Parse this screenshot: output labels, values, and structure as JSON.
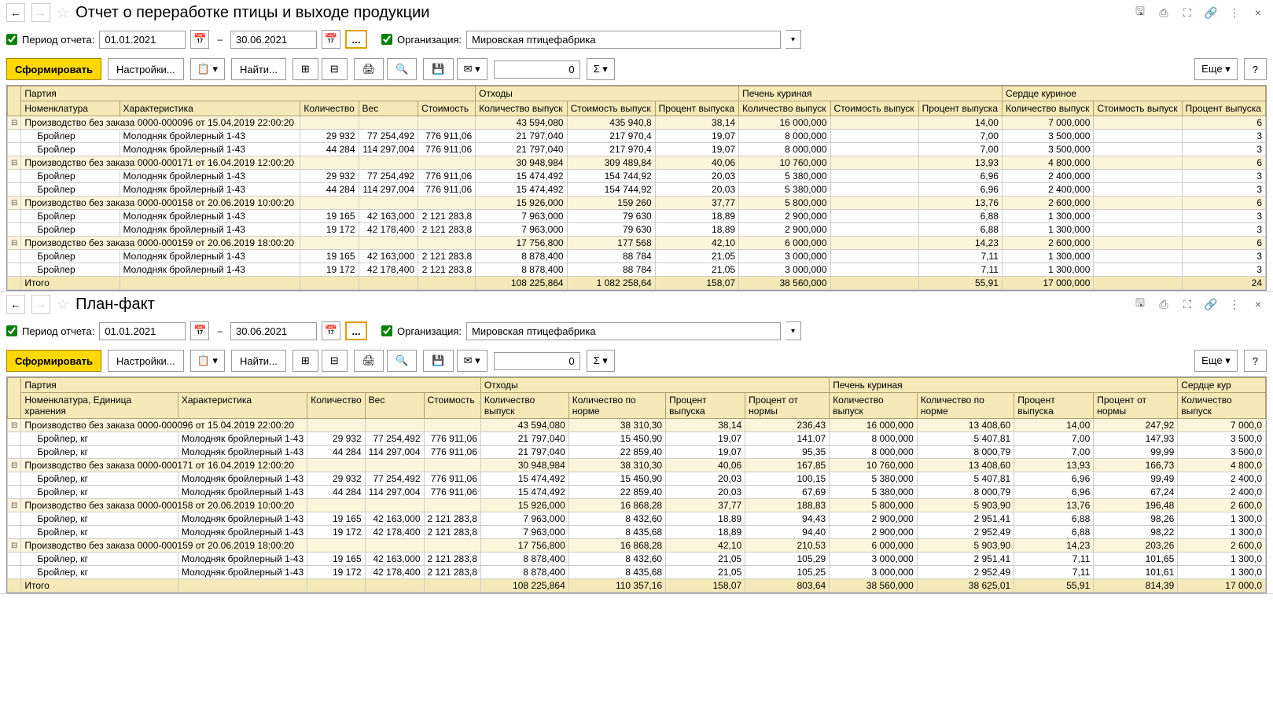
{
  "panes": [
    {
      "title": "Отчет о переработке птицы и выходе продукции",
      "period_label": "Период отчета:",
      "date_from": "01.01.2021",
      "date_to": "30.06.2021",
      "org_label": "Организация:",
      "org_value": "Мировская птицефабрика",
      "btn_form": "Сформировать",
      "btn_settings": "Настройки...",
      "btn_find": "Найти...",
      "num": "0",
      "btn_more": "Еще",
      "btn_help": "?",
      "headers": {
        "groups": [
          {
            "label": "Партия",
            "span": 5
          },
          {
            "label": "Отходы",
            "span": 3
          },
          {
            "label": "Печень куриная",
            "span": 3
          },
          {
            "label": "Сердце куриное",
            "span": 3
          }
        ],
        "cols": [
          "Номенклатура",
          "Характеристика",
          "Количество",
          "Вес",
          "Стоимость",
          "Количество выпуск",
          "Стоимость выпуск",
          "Процент выпуска",
          "Количество выпуск",
          "Стоимость выпуск",
          "Процент выпуска",
          "Количество выпуск",
          "Стоимость выпуск",
          "Процент выпуска"
        ]
      },
      "groups": [
        {
          "label": "Производство без заказа 0000-000096 от 15.04.2019 22:00:20",
          "vals": [
            "",
            "",
            "",
            "",
            "43 594,080",
            "435 940,8",
            "38,14",
            "16 000,000",
            "",
            "14,00",
            "7 000,000",
            "",
            "6"
          ],
          "rows": [
            [
              "Бройлер",
              "Молодняк бройлерный 1-43",
              "29 932",
              "77 254,492",
              "776 911,06",
              "21 797,040",
              "217 970,4",
              "19,07",
              "8 000,000",
              "",
              "7,00",
              "3 500,000",
              "",
              "3"
            ],
            [
              "Бройлер",
              "Молодняк бройлерный 1-43",
              "44 284",
              "114 297,004",
              "776 911,06",
              "21 797,040",
              "217 970,4",
              "19,07",
              "8 000,000",
              "",
              "7,00",
              "3 500,000",
              "",
              "3"
            ]
          ]
        },
        {
          "label": "Производство без заказа 0000-000171 от 16.04.2019 12:00:20",
          "vals": [
            "",
            "",
            "",
            "",
            "30 948,984",
            "309 489,84",
            "40,06",
            "10 760,000",
            "",
            "13,93",
            "4 800,000",
            "",
            "6"
          ],
          "rows": [
            [
              "Бройлер",
              "Молодняк бройлерный 1-43",
              "29 932",
              "77 254,492",
              "776 911,06",
              "15 474,492",
              "154 744,92",
              "20,03",
              "5 380,000",
              "",
              "6,96",
              "2 400,000",
              "",
              "3"
            ],
            [
              "Бройлер",
              "Молодняк бройлерный 1-43",
              "44 284",
              "114 297,004",
              "776 911,06",
              "15 474,492",
              "154 744,92",
              "20,03",
              "5 380,000",
              "",
              "6,96",
              "2 400,000",
              "",
              "3"
            ]
          ]
        },
        {
          "label": "Производство без заказа 0000-000158 от 20.06.2019 10:00:20",
          "vals": [
            "",
            "",
            "",
            "",
            "15 926,000",
            "159 260",
            "37,77",
            "5 800,000",
            "",
            "13,76",
            "2 600,000",
            "",
            "6"
          ],
          "rows": [
            [
              "Бройлер",
              "Молодняк бройлерный 1-43",
              "19 165",
              "42 163,000",
              "2 121 283,8",
              "7 963,000",
              "79 630",
              "18,89",
              "2 900,000",
              "",
              "6,88",
              "1 300,000",
              "",
              "3"
            ],
            [
              "Бройлер",
              "Молодняк бройлерный 1-43",
              "19 172",
              "42 178,400",
              "2 121 283,8",
              "7 963,000",
              "79 630",
              "18,89",
              "2 900,000",
              "",
              "6,88",
              "1 300,000",
              "",
              "3"
            ]
          ]
        },
        {
          "label": "Производство без заказа 0000-000159 от 20.06.2019 18:00:20",
          "vals": [
            "",
            "",
            "",
            "",
            "17 756,800",
            "177 568",
            "42,10",
            "6 000,000",
            "",
            "14,23",
            "2 600,000",
            "",
            "6"
          ],
          "rows": [
            [
              "Бройлер",
              "Молодняк бройлерный 1-43",
              "19 165",
              "42 163,000",
              "2 121 283,8",
              "8 878,400",
              "88 784",
              "21,05",
              "3 000,000",
              "",
              "7,11",
              "1 300,000",
              "",
              "3"
            ],
            [
              "Бройлер",
              "Молодняк бройлерный 1-43",
              "19 172",
              "42 178,400",
              "2 121 283,8",
              "8 878,400",
              "88 784",
              "21,05",
              "3 000,000",
              "",
              "7,11",
              "1 300,000",
              "",
              "3"
            ]
          ]
        }
      ],
      "total": [
        "Итого",
        "",
        "",
        "",
        "",
        "108 225,864",
        "1 082 258,64",
        "158,07",
        "38 560,000",
        "",
        "55,91",
        "17 000,000",
        "",
        "24"
      ]
    },
    {
      "title": "План-факт",
      "period_label": "Период отчета:",
      "date_from": "01.01.2021",
      "date_to": "30.06.2021",
      "org_label": "Организация:",
      "org_value": "Мировская птицефабрика",
      "btn_form": "Сформировать",
      "btn_settings": "Настройки...",
      "btn_find": "Найти...",
      "num": "0",
      "btn_more": "Еще",
      "btn_help": "?",
      "headers": {
        "groups": [
          {
            "label": "Партия",
            "span": 5
          },
          {
            "label": "Отходы",
            "span": 4
          },
          {
            "label": "Печень куриная",
            "span": 4
          },
          {
            "label": "Сердце кур",
            "span": 1
          }
        ],
        "cols": [
          "Номенклатура, Единица хранения",
          "Характеристика",
          "Количество",
          "Вес",
          "Стоимость",
          "Количество выпуск",
          "Количество по норме",
          "Процент выпуска",
          "Процент от нормы",
          "Количество выпуск",
          "Количество по норме",
          "Процент выпуска",
          "Процент от нормы",
          "Количество выпуск"
        ]
      },
      "groups": [
        {
          "label": "Производство без заказа 0000-000096 от 15.04.2019 22:00:20",
          "vals": [
            "",
            "",
            "",
            "",
            "43 594,080",
            "38 310,30",
            "38,14",
            "236,43",
            "16 000,000",
            "13 408,60",
            "14,00",
            "247,92",
            "7 000,0"
          ],
          "rows": [
            [
              "Бройлер, кг",
              "Молодняк бройлерный 1-43",
              "29 932",
              "77 254,492",
              "776 911,06",
              "21 797,040",
              "15 450,90",
              "19,07",
              "141,07",
              "8 000,000",
              "5 407,81",
              "7,00",
              "147,93",
              "3 500,0"
            ],
            [
              "Бройлер, кг",
              "Молодняк бройлерный 1-43",
              "44 284",
              "114 297,004",
              "776 911,06",
              "21 797,040",
              "22 859,40",
              "19,07",
              "95,35",
              "8 000,000",
              "8 000,79",
              "7,00",
              "99,99",
              "3 500,0"
            ]
          ]
        },
        {
          "label": "Производство без заказа 0000-000171 от 16.04.2019 12:00:20",
          "vals": [
            "",
            "",
            "",
            "",
            "30 948,984",
            "38 310,30",
            "40,06",
            "167,85",
            "10 760,000",
            "13 408,60",
            "13,93",
            "166,73",
            "4 800,0"
          ],
          "rows": [
            [
              "Бройлер, кг",
              "Молодняк бройлерный 1-43",
              "29 932",
              "77 254,492",
              "776 911,06",
              "15 474,492",
              "15 450,90",
              "20,03",
              "100,15",
              "5 380,000",
              "5 407,81",
              "6,96",
              "99,49",
              "2 400,0"
            ],
            [
              "Бройлер, кг",
              "Молодняк бройлерный 1-43",
              "44 284",
              "114 297,004",
              "776 911,06",
              "15 474,492",
              "22 859,40",
              "20,03",
              "67,69",
              "5 380,000",
              "8 000,79",
              "6,96",
              "67,24",
              "2 400,0"
            ]
          ]
        },
        {
          "label": "Производство без заказа 0000-000158 от 20.06.2019 10:00:20",
          "vals": [
            "",
            "",
            "",
            "",
            "15 926,000",
            "16 868,28",
            "37,77",
            "188,83",
            "5 800,000",
            "5 903,90",
            "13,76",
            "196,48",
            "2 600,0"
          ],
          "rows": [
            [
              "Бройлер, кг",
              "Молодняк бройлерный 1-43",
              "19 165",
              "42 163,000",
              "2 121 283,8",
              "7 963,000",
              "8 432,60",
              "18,89",
              "94,43",
              "2 900,000",
              "2 951,41",
              "6,88",
              "98,26",
              "1 300,0"
            ],
            [
              "Бройлер, кг",
              "Молодняк бройлерный 1-43",
              "19 172",
              "42 178,400",
              "2 121 283,8",
              "7 963,000",
              "8 435,68",
              "18,89",
              "94,40",
              "2 900,000",
              "2 952,49",
              "6,88",
              "98,22",
              "1 300,0"
            ]
          ]
        },
        {
          "label": "Производство без заказа 0000-000159 от 20.06.2019 18:00:20",
          "vals": [
            "",
            "",
            "",
            "",
            "17 756,800",
            "16 868,28",
            "42,10",
            "210,53",
            "6 000,000",
            "5 903,90",
            "14,23",
            "203,26",
            "2 600,0"
          ],
          "rows": [
            [
              "Бройлер, кг",
              "Молодняк бройлерный 1-43",
              "19 165",
              "42 163,000",
              "2 121 283,8",
              "8 878,400",
              "8 432,60",
              "21,05",
              "105,29",
              "3 000,000",
              "2 951,41",
              "7,11",
              "101,65",
              "1 300,0"
            ],
            [
              "Бройлер, кг",
              "Молодняк бройлерный 1-43",
              "19 172",
              "42 178,400",
              "2 121 283,8",
              "8 878,400",
              "8 435,68",
              "21,05",
              "105,25",
              "3 000,000",
              "2 952,49",
              "7,11",
              "101,61",
              "1 300,0"
            ]
          ]
        }
      ],
      "total": [
        "Итого",
        "",
        "",
        "",
        "",
        "108 225,864",
        "110 357,16",
        "158,07",
        "803,64",
        "38 560,000",
        "38 625,01",
        "55,91",
        "814,39",
        "17 000,0"
      ]
    }
  ]
}
